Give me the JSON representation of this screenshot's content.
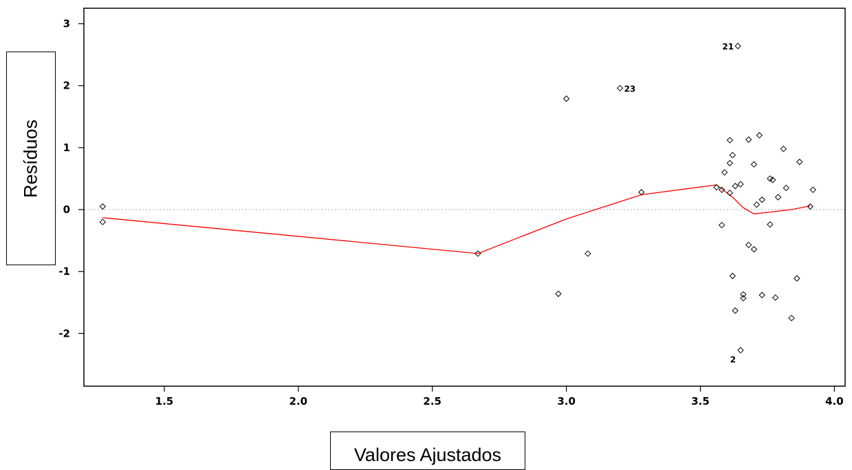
{
  "chart_data": {
    "type": "scatter",
    "xlabel": "Valores Ajustados",
    "ylabel": "Resíduos",
    "xlim": [
      1.2,
      4.04
    ],
    "ylim": [
      -2.85,
      3.25
    ],
    "xticks": [
      "1.5",
      "2.0",
      "2.5",
      "3.0",
      "3.5",
      "4.0"
    ],
    "yticks": [
      "3",
      "2",
      "1",
      "0",
      "-1",
      "-2"
    ],
    "reference_line_y": 0,
    "colors": {
      "points": "#000000",
      "smooth": "#ff0000",
      "refline": "#bbbbbb"
    },
    "points": [
      {
        "x": 1.27,
        "y": 0.05
      },
      {
        "x": 1.27,
        "y": -0.2
      },
      {
        "x": 2.67,
        "y": -0.71
      },
      {
        "x": 2.97,
        "y": -1.36
      },
      {
        "x": 3.0,
        "y": 1.79
      },
      {
        "x": 3.08,
        "y": -0.71
      },
      {
        "x": 3.2,
        "y": 1.96,
        "label": "23"
      },
      {
        "x": 3.28,
        "y": 0.28
      },
      {
        "x": 3.56,
        "y": 0.36
      },
      {
        "x": 3.58,
        "y": 0.32
      },
      {
        "x": 3.58,
        "y": -0.25
      },
      {
        "x": 3.59,
        "y": 0.6
      },
      {
        "x": 3.61,
        "y": 0.27
      },
      {
        "x": 3.61,
        "y": 0.75
      },
      {
        "x": 3.61,
        "y": 1.12
      },
      {
        "x": 3.62,
        "y": 0.88
      },
      {
        "x": 3.62,
        "y": -1.07
      },
      {
        "x": 3.63,
        "y": 0.38
      },
      {
        "x": 3.63,
        "y": -1.63
      },
      {
        "x": 3.64,
        "y": 2.64,
        "label": "21"
      },
      {
        "x": 3.65,
        "y": 0.41
      },
      {
        "x": 3.65,
        "y": -2.27,
        "label": "2"
      },
      {
        "x": 3.66,
        "y": -1.37
      },
      {
        "x": 3.66,
        "y": -1.43
      },
      {
        "x": 3.68,
        "y": 1.13
      },
      {
        "x": 3.68,
        "y": -0.57
      },
      {
        "x": 3.7,
        "y": 0.73
      },
      {
        "x": 3.7,
        "y": -0.64
      },
      {
        "x": 3.71,
        "y": 0.08
      },
      {
        "x": 3.72,
        "y": 1.2
      },
      {
        "x": 3.73,
        "y": 0.16
      },
      {
        "x": 3.73,
        "y": -1.38
      },
      {
        "x": 3.76,
        "y": 0.5
      },
      {
        "x": 3.76,
        "y": -0.24
      },
      {
        "x": 3.77,
        "y": 0.48
      },
      {
        "x": 3.78,
        "y": -1.42
      },
      {
        "x": 3.79,
        "y": 0.2
      },
      {
        "x": 3.81,
        "y": 0.98
      },
      {
        "x": 3.82,
        "y": 0.35
      },
      {
        "x": 3.84,
        "y": -1.75
      },
      {
        "x": 3.86,
        "y": -1.11
      },
      {
        "x": 3.87,
        "y": 0.77
      },
      {
        "x": 3.91,
        "y": 0.05
      },
      {
        "x": 3.92,
        "y": 0.32
      }
    ],
    "smooth_line": [
      {
        "x": 1.27,
        "y": -0.13
      },
      {
        "x": 2.67,
        "y": -0.71
      },
      {
        "x": 3.0,
        "y": -0.15
      },
      {
        "x": 3.28,
        "y": 0.24
      },
      {
        "x": 3.56,
        "y": 0.4
      },
      {
        "x": 3.62,
        "y": 0.2
      },
      {
        "x": 3.66,
        "y": 0.03
      },
      {
        "x": 3.7,
        "y": -0.07
      },
      {
        "x": 3.76,
        "y": -0.04
      },
      {
        "x": 3.84,
        "y": 0.0
      },
      {
        "x": 3.91,
        "y": 0.06
      }
    ]
  }
}
